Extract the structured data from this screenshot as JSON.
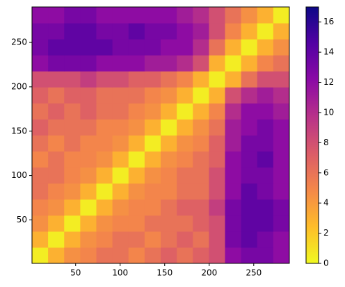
{
  "chart_data": {
    "type": "heatmap",
    "colormap": "plasma_r",
    "xlim": [
      1,
      290
    ],
    "ylim": [
      1,
      290
    ],
    "xticks": [
      50,
      100,
      150,
      200,
      250
    ],
    "yticks": [
      50,
      100,
      150,
      200,
      250
    ],
    "clim": [
      0,
      17
    ],
    "cticks": [
      0,
      2,
      4,
      6,
      8,
      10,
      12,
      14,
      16
    ],
    "values": [
      [
        0.5,
        3,
        4.5,
        5,
        6,
        6,
        5,
        6,
        7,
        6,
        7,
        8,
        12,
        13,
        13,
        12
      ],
      [
        3,
        0.5,
        3,
        4.5,
        5,
        6,
        6,
        5,
        6,
        7,
        6,
        8,
        13,
        14,
        13,
        12
      ],
      [
        4.5,
        3,
        0.5,
        3,
        4.5,
        5,
        5,
        6,
        6,
        6,
        7,
        8,
        13,
        14,
        14,
        13
      ],
      [
        5,
        4.5,
        3,
        0.5,
        3,
        4.5,
        5,
        5,
        6,
        7,
        7,
        9,
        13,
        14,
        14,
        13
      ],
      [
        6,
        5,
        4.5,
        3,
        0.5,
        3,
        4.5,
        5,
        5,
        6,
        6,
        8,
        12,
        14,
        13,
        12
      ],
      [
        6,
        6,
        5,
        4.5,
        3,
        0.5,
        3,
        4.5,
        5,
        6,
        6,
        8,
        12,
        13,
        13,
        12
      ],
      [
        5,
        6,
        5,
        5,
        4.5,
        3,
        0.5,
        3,
        4.5,
        5,
        6,
        7,
        12,
        13,
        14,
        12
      ],
      [
        6,
        5,
        6,
        5,
        5,
        4.5,
        3,
        0.5,
        3,
        4.5,
        5,
        7,
        11,
        13,
        13,
        12
      ],
      [
        7,
        6,
        6,
        6,
        5,
        5,
        4.5,
        3,
        0.5,
        3,
        4.5,
        6,
        11,
        12,
        13,
        12
      ],
      [
        6,
        7,
        6,
        7,
        6,
        6,
        5,
        4.5,
        3,
        0.5,
        3,
        5,
        10,
        12,
        12,
        11
      ],
      [
        7,
        6,
        7,
        7,
        6,
        6,
        6,
        5,
        4.5,
        3,
        0.5,
        3,
        8,
        10,
        11,
        10
      ],
      [
        8,
        8,
        8,
        9,
        8,
        8,
        7,
        7,
        6,
        5,
        3,
        0.5,
        3,
        6,
        8,
        8
      ],
      [
        12,
        13,
        13,
        13,
        12,
        12,
        12,
        11,
        11,
        10,
        8,
        3,
        0.5,
        3,
        5,
        6
      ],
      [
        13,
        14,
        14,
        14,
        14,
        13,
        13,
        13,
        12,
        12,
        10,
        6,
        3,
        0.5,
        3,
        4.5
      ],
      [
        13,
        13,
        14,
        14,
        13,
        13,
        14,
        13,
        13,
        12,
        11,
        8,
        5,
        3,
        0.5,
        3
      ],
      [
        12,
        12,
        13,
        13,
        12,
        12,
        12,
        12,
        12,
        11,
        10,
        8,
        6,
        4.5,
        3,
        0.5
      ]
    ]
  }
}
